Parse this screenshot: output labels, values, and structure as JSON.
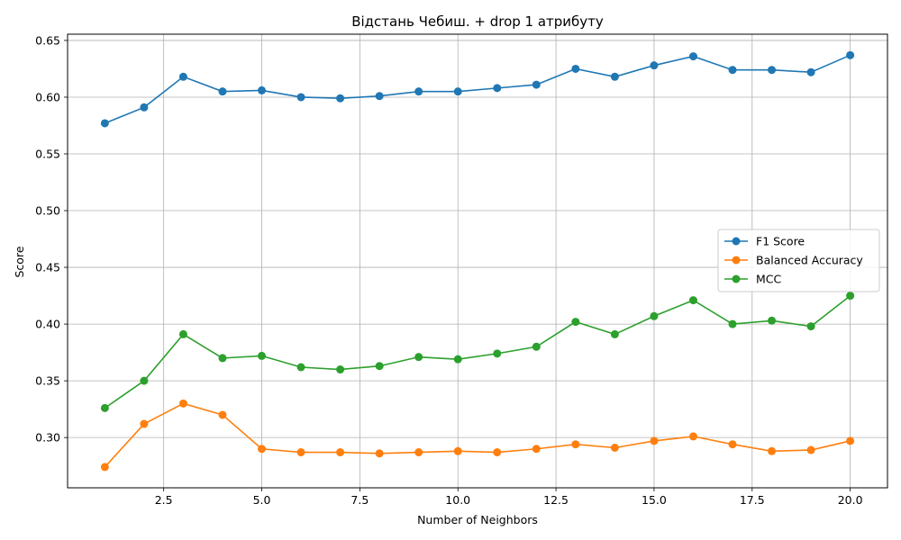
{
  "chart_data": {
    "type": "line",
    "title": "Відстань Чебиш. + drop 1 атрибуту",
    "xlabel": "Number of Neighbors",
    "ylabel": "Score",
    "x": [
      1,
      2,
      3,
      4,
      5,
      6,
      7,
      8,
      9,
      10,
      11,
      12,
      13,
      14,
      15,
      16,
      17,
      18,
      19,
      20
    ],
    "xlim": [
      0.05,
      20.95
    ],
    "ylim": [
      0.2557,
      0.6555
    ],
    "xticks": [
      2.5,
      5.0,
      7.5,
      10.0,
      12.5,
      15.0,
      17.5,
      20.0
    ],
    "xtick_labels": [
      "2.5",
      "5.0",
      "7.5",
      "10.0",
      "12.5",
      "15.0",
      "17.5",
      "20.0"
    ],
    "yticks": [
      0.3,
      0.35,
      0.4,
      0.45,
      0.5,
      0.55,
      0.6,
      0.65
    ],
    "ytick_labels": [
      "0.30",
      "0.35",
      "0.40",
      "0.45",
      "0.50",
      "0.55",
      "0.60",
      "0.65"
    ],
    "grid": true,
    "legend_position": "center-right",
    "series": [
      {
        "name": "F1 Score",
        "color": "#1f77b4",
        "values": [
          0.577,
          0.591,
          0.618,
          0.605,
          0.606,
          0.6,
          0.599,
          0.601,
          0.605,
          0.605,
          0.608,
          0.611,
          0.625,
          0.618,
          0.628,
          0.636,
          0.624,
          0.624,
          0.622,
          0.637
        ]
      },
      {
        "name": "Balanced Accuracy",
        "color": "#ff7f0e",
        "values": [
          0.274,
          0.312,
          0.33,
          0.32,
          0.29,
          0.287,
          0.287,
          0.286,
          0.287,
          0.288,
          0.287,
          0.29,
          0.294,
          0.291,
          0.297,
          0.301,
          0.294,
          0.288,
          0.289,
          0.297
        ]
      },
      {
        "name": "MCC",
        "color": "#2ca02c",
        "values": [
          0.326,
          0.35,
          0.391,
          0.37,
          0.372,
          0.362,
          0.36,
          0.363,
          0.371,
          0.369,
          0.374,
          0.38,
          0.402,
          0.391,
          0.407,
          0.421,
          0.4,
          0.403,
          0.398,
          0.425
        ]
      }
    ]
  }
}
